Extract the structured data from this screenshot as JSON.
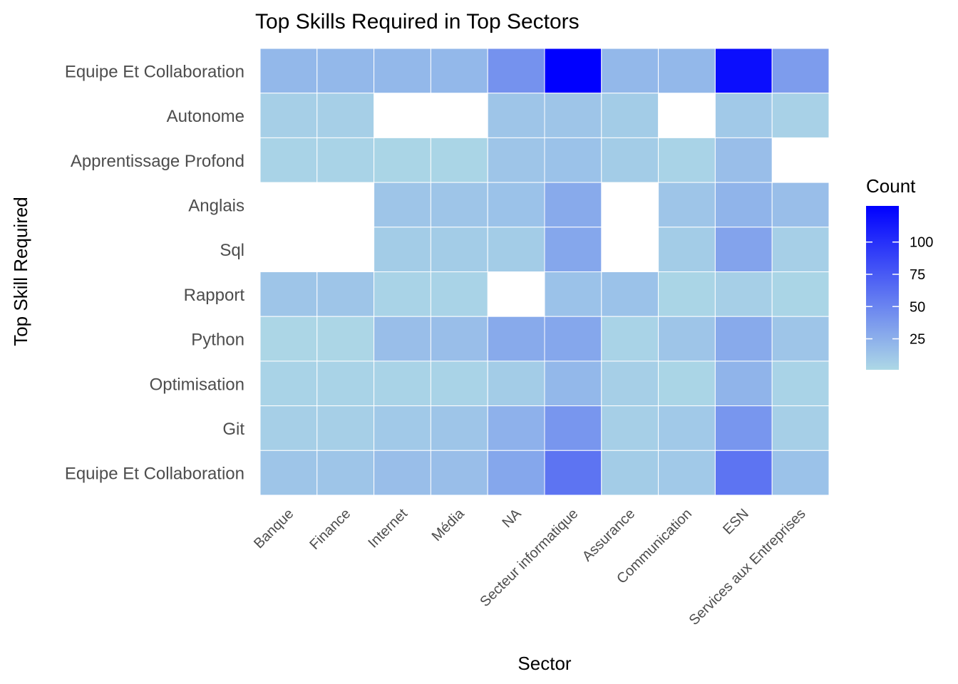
{
  "chart_data": {
    "type": "heatmap",
    "title": "Top Skills Required in Top Sectors",
    "xlabel": "Sector",
    "ylabel": "Top Skill Required",
    "x_categories": [
      "Banque",
      "Finance",
      "Internet",
      "Média",
      "NA",
      "Secteur informatique",
      "Assurance",
      "Communication",
      "ESN",
      "Services aux Entreprises"
    ],
    "y_categories": [
      "Equipe Et Collaboration",
      "Autonome",
      "Apprentissage Profond",
      "Anglais",
      "Sql",
      "Rapport",
      "Python",
      "Optimisation",
      "Git",
      "Equipe Et Collaboration"
    ],
    "values": [
      [
        20,
        20,
        20,
        20,
        42,
        128,
        20,
        20,
        120,
        36
      ],
      [
        6,
        6,
        null,
        null,
        12,
        12,
        8,
        null,
        10,
        5
      ],
      [
        4,
        4,
        3,
        3,
        12,
        14,
        8,
        4,
        16,
        null
      ],
      [
        null,
        null,
        12,
        12,
        14,
        28,
        null,
        12,
        22,
        16
      ],
      [
        null,
        null,
        8,
        8,
        8,
        30,
        null,
        8,
        32,
        6
      ],
      [
        12,
        12,
        4,
        4,
        null,
        14,
        14,
        3,
        6,
        3
      ],
      [
        2,
        2,
        16,
        16,
        28,
        30,
        4,
        12,
        28,
        12
      ],
      [
        4,
        4,
        4,
        4,
        8,
        20,
        6,
        3,
        22,
        4
      ],
      [
        6,
        6,
        10,
        12,
        24,
        40,
        6,
        10,
        40,
        6
      ],
      [
        12,
        12,
        16,
        16,
        30,
        60,
        8,
        10,
        60,
        14
      ]
    ],
    "legend": {
      "title": "Count",
      "ticks": [
        25,
        50,
        75,
        100
      ],
      "min": 1,
      "max": 128,
      "low_color": "#add8e6",
      "high_color": "#0000ff",
      "position": "right"
    },
    "na_color": "#ffffff",
    "grid": false
  }
}
